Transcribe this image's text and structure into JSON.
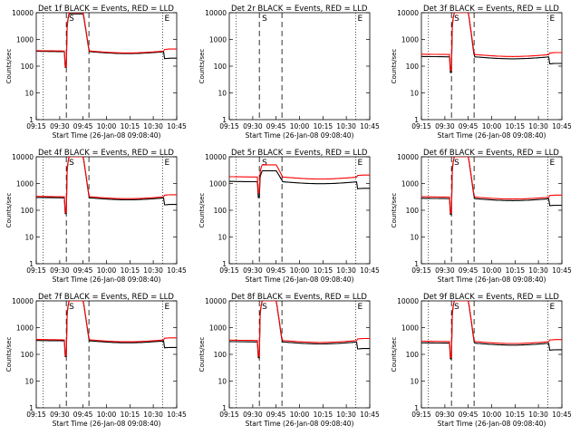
{
  "chart_data": [
    {
      "type": "line",
      "title": "Det 1f  BLACK = Events, RED = LLD",
      "xlabel": "Start Time (26-Jan-08 09:08:40)",
      "ylabel": "Counts/sec",
      "yscale": "log",
      "ylim": [
        1,
        10000
      ],
      "xticks": [
        "09:15",
        "09:30",
        "09:45",
        "10:00",
        "10:15",
        "10:30",
        "10:45"
      ],
      "yticks": [
        "1",
        "10",
        "100",
        "1000",
        "10000"
      ],
      "markers": [
        "S",
        "E"
      ],
      "series": [
        {
          "name": "Events",
          "color": "#000000",
          "baseline": 360,
          "flare_peak": 9000
        },
        {
          "name": "LLD",
          "color": "#ff0000",
          "baseline": 380,
          "flare_peak": 10000
        }
      ]
    },
    {
      "type": "line",
      "title": "Det 2r  BLACK = Events, RED = LLD",
      "xlabel": "Start Time (26-Jan-08 09:08:40)",
      "ylabel": "Counts/sec",
      "yscale": "log",
      "ylim": [
        1,
        10000
      ],
      "xticks": [
        "09:15",
        "09:30",
        "09:45",
        "10:00",
        "10:15",
        "10:30",
        "10:45"
      ],
      "yticks": [
        "1",
        "10",
        "100",
        "1000",
        "10000"
      ],
      "markers": [
        "S",
        "E"
      ],
      "series": [
        {
          "name": "Events",
          "color": "#000000",
          "baseline": null,
          "flare_peak": null
        },
        {
          "name": "LLD",
          "color": "#ff0000",
          "baseline": null,
          "flare_peak": null
        }
      ]
    },
    {
      "type": "line",
      "title": "Det 3f  BLACK = Events, RED = LLD",
      "xlabel": "Start Time (26-Jan-08 09:08:40)",
      "ylabel": "Counts/sec",
      "yscale": "log",
      "ylim": [
        1,
        10000
      ],
      "xticks": [
        "09:15",
        "09:30",
        "09:45",
        "10:00",
        "10:15",
        "10:30",
        "10:45"
      ],
      "yticks": [
        "1",
        "10",
        "100",
        "1000",
        "10000"
      ],
      "markers": [
        "S",
        "E"
      ],
      "series": [
        {
          "name": "Events",
          "color": "#000000",
          "baseline": 230,
          "flare_peak": 10000
        },
        {
          "name": "LLD",
          "color": "#ff0000",
          "baseline": 280,
          "flare_peak": 10000
        }
      ]
    },
    {
      "type": "line",
      "title": "Det 4f  BLACK = Events, RED = LLD",
      "xlabel": "Start Time (26-Jan-08 09:08:40)",
      "ylabel": "Counts/sec",
      "yscale": "log",
      "ylim": [
        1,
        10000
      ],
      "xticks": [
        "09:15",
        "09:30",
        "09:45",
        "10:00",
        "10:15",
        "10:30",
        "10:45"
      ],
      "yticks": [
        "1",
        "10",
        "100",
        "1000",
        "10000"
      ],
      "markers": [
        "S",
        "E"
      ],
      "series": [
        {
          "name": "Events",
          "color": "#000000",
          "baseline": 300,
          "flare_peak": 10000
        },
        {
          "name": "LLD",
          "color": "#ff0000",
          "baseline": 330,
          "flare_peak": 10000
        }
      ]
    },
    {
      "type": "line",
      "title": "Det 5r  BLACK = Events, RED = LLD",
      "xlabel": "Start Time (26-Jan-08 09:08:40)",
      "ylabel": "Counts/sec",
      "yscale": "log",
      "ylim": [
        1,
        10000
      ],
      "xticks": [
        "09:15",
        "09:30",
        "09:45",
        "10:00",
        "10:15",
        "10:30",
        "10:45"
      ],
      "yticks": [
        "1",
        "10",
        "100",
        "1000",
        "10000"
      ],
      "markers": [
        "S",
        "E"
      ],
      "series": [
        {
          "name": "Events",
          "color": "#000000",
          "baseline": 1200,
          "flare_peak": 3000
        },
        {
          "name": "LLD",
          "color": "#ff0000",
          "baseline": 1800,
          "flare_peak": 5000
        }
      ]
    },
    {
      "type": "line",
      "title": "Det 6f  BLACK = Events, RED = LLD",
      "xlabel": "Start Time (26-Jan-08 09:08:40)",
      "ylabel": "Counts/sec",
      "yscale": "log",
      "ylim": [
        1,
        10000
      ],
      "xticks": [
        "09:15",
        "09:30",
        "09:45",
        "10:00",
        "10:15",
        "10:30",
        "10:45"
      ],
      "yticks": [
        "1",
        "10",
        "100",
        "1000",
        "10000"
      ],
      "markers": [
        "S",
        "E"
      ],
      "series": [
        {
          "name": "Events",
          "color": "#000000",
          "baseline": 280,
          "flare_peak": 10000
        },
        {
          "name": "LLD",
          "color": "#ff0000",
          "baseline": 320,
          "flare_peak": 10000
        }
      ]
    },
    {
      "type": "line",
      "title": "Det 7f  BLACK = Events, RED = LLD",
      "xlabel": "Start Time (26-Jan-08 09:08:40)",
      "ylabel": "Counts/sec",
      "yscale": "log",
      "ylim": [
        1,
        10000
      ],
      "xticks": [
        "09:15",
        "09:30",
        "09:45",
        "10:00",
        "10:15",
        "10:30",
        "10:45"
      ],
      "yticks": [
        "1",
        "10",
        "100",
        "1000",
        "10000"
      ],
      "markers": [
        "S",
        "E"
      ],
      "series": [
        {
          "name": "Events",
          "color": "#000000",
          "baseline": 330,
          "flare_peak": 10000
        },
        {
          "name": "LLD",
          "color": "#ff0000",
          "baseline": 360,
          "flare_peak": 10000
        }
      ]
    },
    {
      "type": "line",
      "title": "Det 8f  BLACK = Events, RED = LLD",
      "xlabel": "Start Time (26-Jan-08 09:08:40)",
      "ylabel": "Counts/sec",
      "yscale": "log",
      "ylim": [
        1,
        10000
      ],
      "xticks": [
        "09:15",
        "09:30",
        "09:45",
        "10:00",
        "10:15",
        "10:30",
        "10:45"
      ],
      "yticks": [
        "1",
        "10",
        "100",
        "1000",
        "10000"
      ],
      "markers": [
        "S",
        "E"
      ],
      "series": [
        {
          "name": "Events",
          "color": "#000000",
          "baseline": 300,
          "flare_peak": 10000
        },
        {
          "name": "LLD",
          "color": "#ff0000",
          "baseline": 340,
          "flare_peak": 10000
        }
      ]
    },
    {
      "type": "line",
      "title": "Det 9f  BLACK = Events, RED = LLD",
      "xlabel": "Start Time (26-Jan-08 09:08:40)",
      "ylabel": "Counts/sec",
      "yscale": "log",
      "ylim": [
        1,
        10000
      ],
      "xticks": [
        "09:15",
        "09:30",
        "09:45",
        "10:00",
        "10:15",
        "10:30",
        "10:45"
      ],
      "yticks": [
        "1",
        "10",
        "100",
        "1000",
        "10000"
      ],
      "markers": [
        "S",
        "E"
      ],
      "series": [
        {
          "name": "Events",
          "color": "#000000",
          "baseline": 270,
          "flare_peak": 10000
        },
        {
          "name": "LLD",
          "color": "#ff0000",
          "baseline": 310,
          "flare_peak": 10000
        }
      ]
    }
  ]
}
